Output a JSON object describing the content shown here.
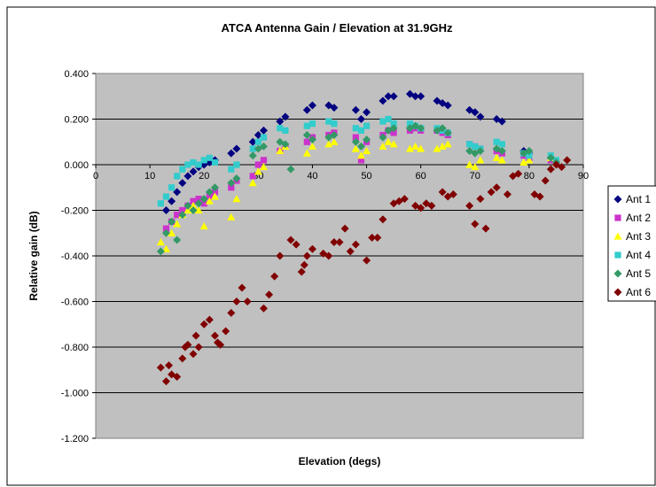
{
  "chart_data": {
    "type": "scatter",
    "title": "ATCA Antenna Gain / Elevation at 31.9GHz",
    "xlabel": "Elevation (degs)",
    "ylabel": "Relative gain (dB)",
    "xlim": [
      0,
      90
    ],
    "ylim": [
      -1.2,
      0.4
    ],
    "x_ticks": [
      0,
      10,
      20,
      30,
      40,
      50,
      60,
      70,
      80,
      90
    ],
    "x_tick_labels": [
      "0",
      "10",
      "20",
      "30",
      "40",
      "50",
      "60",
      "70",
      "80",
      "90"
    ],
    "y_ticks": [
      0.4,
      0.2,
      0.0,
      -0.2,
      -0.4,
      -0.6,
      -0.8,
      -1.0,
      -1.2
    ],
    "y_tick_labels": [
      "0.400",
      "0.200",
      "0.000",
      "-0.200",
      "-0.400",
      "-0.600",
      "-0.800",
      "-1.000",
      "-1.200"
    ],
    "grid": "horizontal",
    "legend": "right",
    "series": [
      {
        "name": "Ant 1",
        "color": "#000080",
        "marker": "diamond",
        "points": [
          [
            13,
            -0.2
          ],
          [
            14,
            -0.16
          ],
          [
            15,
            -0.12
          ],
          [
            16,
            -0.08
          ],
          [
            17,
            -0.05
          ],
          [
            18,
            -0.03
          ],
          [
            19,
            -0.01
          ],
          [
            20,
            0.0
          ],
          [
            21,
            0.01
          ],
          [
            22,
            0.02
          ],
          [
            25,
            0.05
          ],
          [
            26,
            0.07
          ],
          [
            29,
            0.1
          ],
          [
            30,
            0.13
          ],
          [
            31,
            0.15
          ],
          [
            34,
            0.19
          ],
          [
            35,
            0.21
          ],
          [
            39,
            0.24
          ],
          [
            40,
            0.26
          ],
          [
            43,
            0.26
          ],
          [
            44,
            0.25
          ],
          [
            48,
            0.24
          ],
          [
            49,
            0.2
          ],
          [
            50,
            0.23
          ],
          [
            53,
            0.28
          ],
          [
            54,
            0.3
          ],
          [
            55,
            0.3
          ],
          [
            58,
            0.31
          ],
          [
            59,
            0.3
          ],
          [
            60,
            0.3
          ],
          [
            63,
            0.28
          ],
          [
            64,
            0.27
          ],
          [
            65,
            0.26
          ],
          [
            69,
            0.24
          ],
          [
            70,
            0.23
          ],
          [
            71,
            0.21
          ],
          [
            74,
            0.2
          ],
          [
            75,
            0.19
          ],
          [
            79,
            0.06
          ],
          [
            80,
            0.05
          ],
          [
            84,
            0.03
          ],
          [
            85,
            0.01
          ]
        ]
      },
      {
        "name": "Ant 2",
        "color": "#cc33cc",
        "marker": "square",
        "points": [
          [
            13,
            -0.28
          ],
          [
            14,
            -0.25
          ],
          [
            15,
            -0.22
          ],
          [
            16,
            -0.2
          ],
          [
            17,
            -0.18
          ],
          [
            18,
            -0.16
          ],
          [
            19,
            -0.15
          ],
          [
            20,
            -0.17
          ],
          [
            21,
            -0.14
          ],
          [
            22,
            -0.12
          ],
          [
            25,
            -0.1
          ],
          [
            26,
            -0.07
          ],
          [
            29,
            -0.05
          ],
          [
            30,
            0.0
          ],
          [
            31,
            0.02
          ],
          [
            34,
            0.06
          ],
          [
            35,
            0.08
          ],
          [
            39,
            0.1
          ],
          [
            40,
            0.12
          ],
          [
            43,
            0.13
          ],
          [
            44,
            0.14
          ],
          [
            48,
            0.12
          ],
          [
            49,
            0.02
          ],
          [
            50,
            0.1
          ],
          [
            53,
            0.13
          ],
          [
            54,
            0.15
          ],
          [
            55,
            0.14
          ],
          [
            58,
            0.15
          ],
          [
            59,
            0.16
          ],
          [
            60,
            0.15
          ],
          [
            63,
            0.15
          ],
          [
            64,
            0.14
          ],
          [
            65,
            0.13
          ],
          [
            69,
            0.09
          ],
          [
            70,
            0.08
          ],
          [
            71,
            0.07
          ],
          [
            74,
            0.06
          ],
          [
            75,
            0.05
          ],
          [
            79,
            0.04
          ],
          [
            80,
            0.03
          ],
          [
            84,
            0.02
          ],
          [
            85,
            0.01
          ]
        ]
      },
      {
        "name": "Ant 3",
        "color": "#ffff00",
        "marker": "triangle",
        "points": [
          [
            12,
            -0.34
          ],
          [
            13,
            -0.37
          ],
          [
            14,
            -0.3
          ],
          [
            15,
            -0.26
          ],
          [
            16,
            -0.22
          ],
          [
            17,
            -0.2
          ],
          [
            18,
            -0.18
          ],
          [
            19,
            -0.2
          ],
          [
            20,
            -0.27
          ],
          [
            21,
            -0.16
          ],
          [
            22,
            -0.14
          ],
          [
            25,
            -0.23
          ],
          [
            26,
            -0.15
          ],
          [
            29,
            -0.08
          ],
          [
            30,
            -0.03
          ],
          [
            31,
            -0.01
          ],
          [
            34,
            0.06
          ],
          [
            35,
            0.08
          ],
          [
            39,
            0.05
          ],
          [
            40,
            0.08
          ],
          [
            43,
            0.09
          ],
          [
            44,
            0.1
          ],
          [
            48,
            0.07
          ],
          [
            49,
            0.04
          ],
          [
            50,
            0.06
          ],
          [
            53,
            0.08
          ],
          [
            54,
            0.1
          ],
          [
            55,
            0.09
          ],
          [
            58,
            0.07
          ],
          [
            59,
            0.08
          ],
          [
            60,
            0.07
          ],
          [
            63,
            0.07
          ],
          [
            64,
            0.08
          ],
          [
            65,
            0.09
          ],
          [
            69,
            0.0
          ],
          [
            70,
            -0.01
          ],
          [
            71,
            0.02
          ],
          [
            74,
            0.03
          ],
          [
            75,
            0.02
          ],
          [
            79,
            0.01
          ],
          [
            80,
            0.02
          ],
          [
            84,
            0.03
          ],
          [
            85,
            0.01
          ]
        ]
      },
      {
        "name": "Ant 4",
        "color": "#33cccc",
        "marker": "square",
        "points": [
          [
            12,
            -0.17
          ],
          [
            13,
            -0.14
          ],
          [
            14,
            -0.1
          ],
          [
            15,
            -0.05
          ],
          [
            16,
            -0.02
          ],
          [
            17,
            0.0
          ],
          [
            18,
            0.01
          ],
          [
            19,
            0.0
          ],
          [
            20,
            0.02
          ],
          [
            21,
            0.03
          ],
          [
            22,
            0.01
          ],
          [
            25,
            -0.02
          ],
          [
            26,
            0.0
          ],
          [
            29,
            0.07
          ],
          [
            30,
            0.1
          ],
          [
            31,
            0.12
          ],
          [
            34,
            0.16
          ],
          [
            35,
            0.15
          ],
          [
            39,
            0.17
          ],
          [
            40,
            0.18
          ],
          [
            43,
            0.19
          ],
          [
            44,
            0.18
          ],
          [
            48,
            0.16
          ],
          [
            49,
            0.15
          ],
          [
            50,
            0.17
          ],
          [
            53,
            0.19
          ],
          [
            54,
            0.2
          ],
          [
            55,
            0.18
          ],
          [
            58,
            0.18
          ],
          [
            59,
            0.17
          ],
          [
            60,
            0.16
          ],
          [
            63,
            0.16
          ],
          [
            64,
            0.15
          ],
          [
            65,
            0.14
          ],
          [
            69,
            0.09
          ],
          [
            70,
            0.08
          ],
          [
            71,
            0.07
          ],
          [
            74,
            0.1
          ],
          [
            75,
            0.09
          ],
          [
            79,
            0.05
          ],
          [
            80,
            0.04
          ],
          [
            84,
            0.04
          ],
          [
            85,
            0.02
          ]
        ]
      },
      {
        "name": "Ant 5",
        "color": "#339966",
        "marker": "diamond",
        "points": [
          [
            12,
            -0.38
          ],
          [
            13,
            -0.3
          ],
          [
            14,
            -0.25
          ],
          [
            15,
            -0.33
          ],
          [
            16,
            -0.22
          ],
          [
            17,
            -0.18
          ],
          [
            18,
            -0.2
          ],
          [
            19,
            -0.17
          ],
          [
            20,
            -0.15
          ],
          [
            21,
            -0.12
          ],
          [
            22,
            -0.1
          ],
          [
            25,
            -0.08
          ],
          [
            26,
            -0.06
          ],
          [
            29,
            0.04
          ],
          [
            30,
            0.07
          ],
          [
            31,
            0.08
          ],
          [
            34,
            0.1
          ],
          [
            35,
            0.09
          ],
          [
            36,
            -0.02
          ],
          [
            39,
            0.13
          ],
          [
            40,
            0.11
          ],
          [
            43,
            0.12
          ],
          [
            44,
            0.13
          ],
          [
            48,
            0.1
          ],
          [
            49,
            0.08
          ],
          [
            50,
            0.11
          ],
          [
            53,
            0.12
          ],
          [
            54,
            0.15
          ],
          [
            55,
            0.16
          ],
          [
            58,
            0.16
          ],
          [
            59,
            0.17
          ],
          [
            60,
            0.16
          ],
          [
            63,
            0.15
          ],
          [
            64,
            0.16
          ],
          [
            65,
            0.14
          ],
          [
            69,
            0.06
          ],
          [
            70,
            0.05
          ],
          [
            71,
            0.06
          ],
          [
            74,
            0.07
          ],
          [
            75,
            0.06
          ],
          [
            79,
            0.05
          ],
          [
            80,
            0.06
          ],
          [
            84,
            0.03
          ],
          [
            85,
            0.01
          ]
        ]
      },
      {
        "name": "Ant 6",
        "color": "#800000",
        "marker": "diamond",
        "points": [
          [
            12,
            -0.89
          ],
          [
            13,
            -0.95
          ],
          [
            13.5,
            -0.88
          ],
          [
            14,
            -0.92
          ],
          [
            15,
            -0.93
          ],
          [
            16,
            -0.85
          ],
          [
            16.5,
            -0.8
          ],
          [
            17,
            -0.79
          ],
          [
            18,
            -0.83
          ],
          [
            18.5,
            -0.75
          ],
          [
            19,
            -0.8
          ],
          [
            20,
            -0.7
          ],
          [
            21,
            -0.68
          ],
          [
            22,
            -0.75
          ],
          [
            22.5,
            -0.78
          ],
          [
            23,
            -0.79
          ],
          [
            24,
            -0.73
          ],
          [
            25,
            -0.65
          ],
          [
            26,
            -0.6
          ],
          [
            27,
            -0.54
          ],
          [
            28,
            -0.6
          ],
          [
            31,
            -0.63
          ],
          [
            32,
            -0.57
          ],
          [
            33,
            -0.49
          ],
          [
            34,
            -0.4
          ],
          [
            36,
            -0.33
          ],
          [
            37,
            -0.35
          ],
          [
            38,
            -0.47
          ],
          [
            38.5,
            -0.44
          ],
          [
            39,
            -0.4
          ],
          [
            40,
            -0.37
          ],
          [
            42,
            -0.39
          ],
          [
            43,
            -0.4
          ],
          [
            44,
            -0.34
          ],
          [
            45,
            -0.34
          ],
          [
            46,
            -0.28
          ],
          [
            47,
            -0.38
          ],
          [
            48,
            -0.35
          ],
          [
            50,
            -0.42
          ],
          [
            51,
            -0.32
          ],
          [
            52,
            -0.32
          ],
          [
            53,
            -0.24
          ],
          [
            55,
            -0.17
          ],
          [
            56,
            -0.16
          ],
          [
            57,
            -0.15
          ],
          [
            59,
            -0.18
          ],
          [
            60,
            -0.19
          ],
          [
            61,
            -0.17
          ],
          [
            62,
            -0.18
          ],
          [
            64,
            -0.12
          ],
          [
            65,
            -0.14
          ],
          [
            66,
            -0.13
          ],
          [
            69,
            -0.18
          ],
          [
            70,
            -0.26
          ],
          [
            71,
            -0.15
          ],
          [
            72,
            -0.28
          ],
          [
            73,
            -0.12
          ],
          [
            74,
            -0.1
          ],
          [
            76,
            -0.13
          ],
          [
            77,
            -0.05
          ],
          [
            78,
            -0.04
          ],
          [
            81,
            -0.13
          ],
          [
            82,
            -0.14
          ],
          [
            83,
            -0.07
          ],
          [
            84,
            -0.02
          ],
          [
            85,
            0.0
          ],
          [
            86,
            -0.01
          ],
          [
            87,
            0.02
          ]
        ]
      }
    ]
  }
}
